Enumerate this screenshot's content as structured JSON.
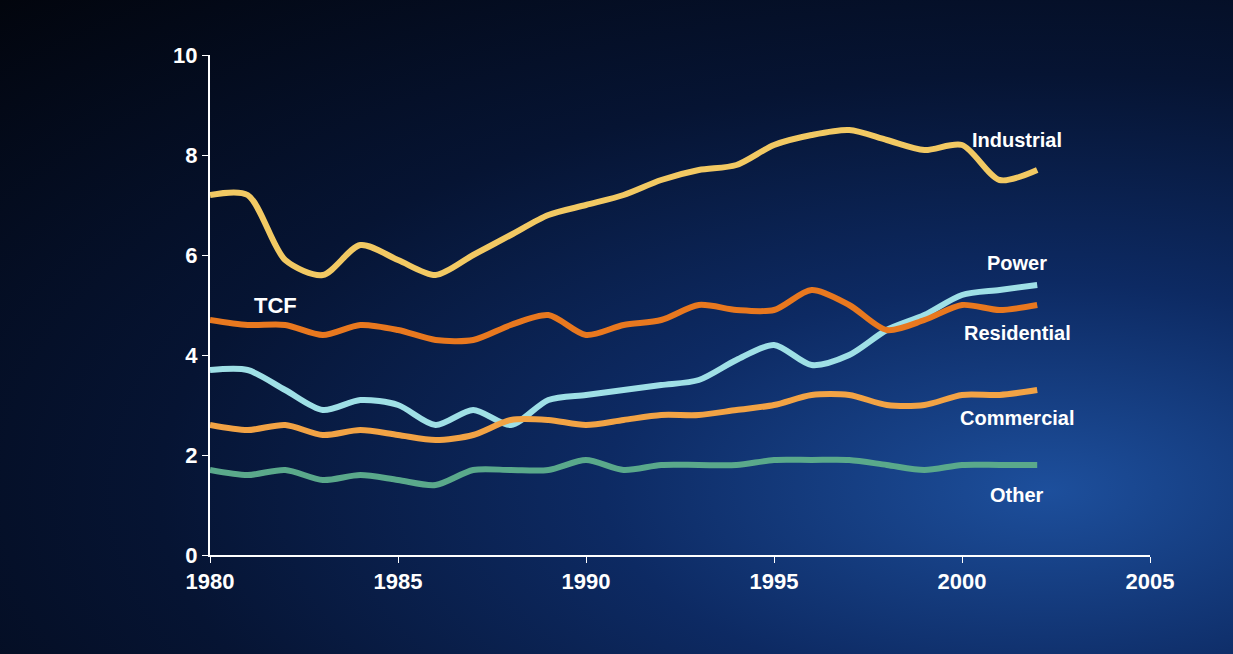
{
  "chart_data": {
    "type": "line",
    "y_label": "TCF",
    "x": [
      1980,
      1981,
      1982,
      1983,
      1984,
      1985,
      1986,
      1987,
      1988,
      1989,
      1990,
      1991,
      1992,
      1993,
      1994,
      1995,
      1996,
      1997,
      1998,
      1999,
      2000,
      2001,
      2002
    ],
    "series": [
      {
        "name": "Industrial",
        "color": "#f2c963",
        "values": [
          7.2,
          7.2,
          5.9,
          5.6,
          6.2,
          5.9,
          5.6,
          6.0,
          6.4,
          6.8,
          7.0,
          7.2,
          7.5,
          7.7,
          7.8,
          8.2,
          8.4,
          8.5,
          8.3,
          8.1,
          8.2,
          7.5,
          7.7
        ]
      },
      {
        "name": "Power",
        "color": "#9fe0e6",
        "values": [
          3.7,
          3.7,
          3.3,
          2.9,
          3.1,
          3.0,
          2.6,
          2.9,
          2.6,
          3.1,
          3.2,
          3.3,
          3.4,
          3.5,
          3.9,
          4.2,
          3.8,
          4.0,
          4.5,
          4.8,
          5.2,
          5.3,
          5.4
        ]
      },
      {
        "name": "Residential",
        "color": "#e8781f",
        "values": [
          4.7,
          4.6,
          4.6,
          4.4,
          4.6,
          4.5,
          4.3,
          4.3,
          4.6,
          4.8,
          4.4,
          4.6,
          4.7,
          5.0,
          4.9,
          4.9,
          5.3,
          5.0,
          4.5,
          4.7,
          5.0,
          4.9,
          5.0
        ]
      },
      {
        "name": "Commercial",
        "color": "#f2a345",
        "values": [
          2.6,
          2.5,
          2.6,
          2.4,
          2.5,
          2.4,
          2.3,
          2.4,
          2.7,
          2.7,
          2.6,
          2.7,
          2.8,
          2.8,
          2.9,
          3.0,
          3.2,
          3.2,
          3.0,
          3.0,
          3.2,
          3.2,
          3.3
        ]
      },
      {
        "name": "Other",
        "color": "#5aa98b",
        "values": [
          1.7,
          1.6,
          1.7,
          1.5,
          1.6,
          1.5,
          1.4,
          1.7,
          1.7,
          1.7,
          1.9,
          1.7,
          1.8,
          1.8,
          1.8,
          1.9,
          1.9,
          1.9,
          1.8,
          1.7,
          1.8,
          1.8,
          1.8
        ]
      }
    ],
    "xlim": [
      1980,
      2005
    ],
    "xticks": [
      1980,
      1985,
      1990,
      1995,
      2000,
      2005
    ],
    "ylim": [
      0,
      10
    ],
    "yticks": [
      0,
      2,
      4,
      6,
      8,
      10
    ],
    "grid": false
  }
}
